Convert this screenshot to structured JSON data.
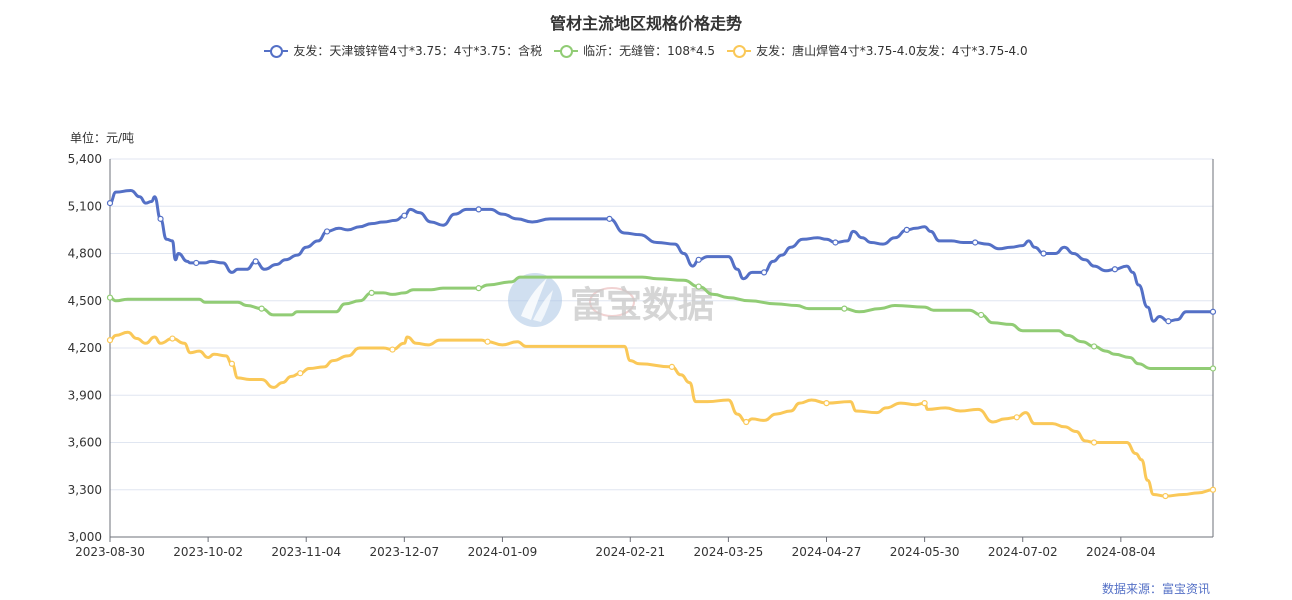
{
  "chart_data": {
    "type": "line",
    "title": "管材主流地区规格价格走势",
    "unit_label": "单位：元/吨",
    "source": "数据来源：富宝资讯",
    "watermark": "富宝数据",
    "ylim": [
      3000,
      5400
    ],
    "y_ticks": [
      "3,000",
      "3,300",
      "3,600",
      "3,900",
      "4,200",
      "4,500",
      "4,800",
      "5,100",
      "5,400"
    ],
    "y_tick_values": [
      3000,
      3300,
      3600,
      3900,
      4200,
      4500,
      4800,
      5100,
      5400
    ],
    "x_ticks": [
      "2023-08-30",
      "2023-10-02",
      "2023-11-04",
      "2023-12-07",
      "2024-01-09",
      "2024-02-21",
      "2024-03-25",
      "2024-04-27",
      "2024-05-30",
      "2024-07-02",
      "2024-08-04"
    ],
    "x_range": [
      "2023-08-30",
      "2024-09-04"
    ],
    "grid": true,
    "legend_position": "top-center",
    "series": [
      {
        "name": "友发：天津镀锌管4寸*3.75：4寸*3.75：含税",
        "color": "#5470c6",
        "points": [
          [
            "2023-08-30",
            5120
          ],
          [
            "2023-09-01",
            5190
          ],
          [
            "2023-09-06",
            5200
          ],
          [
            "2023-09-09",
            5160
          ],
          [
            "2023-09-11",
            5120
          ],
          [
            "2023-09-13",
            5130
          ],
          [
            "2023-09-14",
            5160
          ],
          [
            "2023-09-16",
            5020
          ],
          [
            "2023-09-18",
            4890
          ],
          [
            "2023-09-20",
            4880
          ],
          [
            "2023-09-21",
            4760
          ],
          [
            "2023-09-22",
            4800
          ],
          [
            "2023-09-25",
            4750
          ],
          [
            "2023-09-26",
            4740
          ],
          [
            "2023-09-28",
            4740
          ],
          [
            "2023-10-01",
            4740
          ],
          [
            "2023-10-03",
            4750
          ],
          [
            "2023-10-07",
            4740
          ],
          [
            "2023-10-10",
            4680
          ],
          [
            "2023-10-12",
            4700
          ],
          [
            "2023-10-15",
            4700
          ],
          [
            "2023-10-18",
            4750
          ],
          [
            "2023-10-21",
            4700
          ],
          [
            "2023-10-25",
            4730
          ],
          [
            "2023-10-28",
            4760
          ],
          [
            "2023-11-01",
            4790
          ],
          [
            "2023-11-04",
            4840
          ],
          [
            "2023-11-08",
            4880
          ],
          [
            "2023-11-11",
            4940
          ],
          [
            "2023-11-15",
            4960
          ],
          [
            "2023-11-18",
            4950
          ],
          [
            "2023-11-22",
            4970
          ],
          [
            "2023-11-26",
            4990
          ],
          [
            "2023-11-30",
            5000
          ],
          [
            "2023-12-04",
            5010
          ],
          [
            "2023-12-07",
            5040
          ],
          [
            "2023-12-09",
            5080
          ],
          [
            "2023-12-12",
            5060
          ],
          [
            "2023-12-16",
            5000
          ],
          [
            "2023-12-20",
            4980
          ],
          [
            "2023-12-24",
            5050
          ],
          [
            "2023-12-28",
            5080
          ],
          [
            "2024-01-01",
            5080
          ],
          [
            "2024-01-05",
            5080
          ],
          [
            "2024-01-09",
            5050
          ],
          [
            "2024-01-14",
            5020
          ],
          [
            "2024-01-19",
            5000
          ],
          [
            "2024-01-25",
            5020
          ],
          [
            "2024-02-04",
            5020
          ],
          [
            "2024-02-14",
            5020
          ],
          [
            "2024-02-19",
            4930
          ],
          [
            "2024-02-24",
            4920
          ],
          [
            "2024-03-01",
            4870
          ],
          [
            "2024-03-07",
            4860
          ],
          [
            "2024-03-10",
            4800
          ],
          [
            "2024-03-13",
            4720
          ],
          [
            "2024-03-15",
            4760
          ],
          [
            "2024-03-18",
            4780
          ],
          [
            "2024-03-22",
            4780
          ],
          [
            "2024-03-25",
            4780
          ],
          [
            "2024-03-28",
            4700
          ],
          [
            "2024-03-30",
            4640
          ],
          [
            "2024-04-02",
            4680
          ],
          [
            "2024-04-06",
            4680
          ],
          [
            "2024-04-09",
            4750
          ],
          [
            "2024-04-12",
            4790
          ],
          [
            "2024-04-15",
            4840
          ],
          [
            "2024-04-19",
            4890
          ],
          [
            "2024-04-24",
            4900
          ],
          [
            "2024-04-27",
            4890
          ],
          [
            "2024-04-30",
            4870
          ],
          [
            "2024-05-04",
            4880
          ],
          [
            "2024-05-06",
            4940
          ],
          [
            "2024-05-09",
            4900
          ],
          [
            "2024-05-12",
            4870
          ],
          [
            "2024-05-16",
            4860
          ],
          [
            "2024-05-20",
            4900
          ],
          [
            "2024-05-24",
            4950
          ],
          [
            "2024-05-27",
            4960
          ],
          [
            "2024-05-30",
            4970
          ],
          [
            "2024-06-01",
            4940
          ],
          [
            "2024-06-04",
            4880
          ],
          [
            "2024-06-08",
            4880
          ],
          [
            "2024-06-12",
            4870
          ],
          [
            "2024-06-16",
            4870
          ],
          [
            "2024-06-20",
            4860
          ],
          [
            "2024-06-24",
            4830
          ],
          [
            "2024-06-28",
            4840
          ],
          [
            "2024-07-02",
            4850
          ],
          [
            "2024-07-04",
            4880
          ],
          [
            "2024-07-06",
            4840
          ],
          [
            "2024-07-09",
            4800
          ],
          [
            "2024-07-13",
            4800
          ],
          [
            "2024-07-16",
            4840
          ],
          [
            "2024-07-19",
            4800
          ],
          [
            "2024-07-23",
            4760
          ],
          [
            "2024-07-26",
            4720
          ],
          [
            "2024-07-30",
            4690
          ],
          [
            "2024-08-02",
            4700
          ],
          [
            "2024-08-06",
            4720
          ],
          [
            "2024-08-08",
            4680
          ],
          [
            "2024-08-10",
            4600
          ],
          [
            "2024-08-13",
            4460
          ],
          [
            "2024-08-15",
            4370
          ],
          [
            "2024-08-17",
            4400
          ],
          [
            "2024-08-20",
            4370
          ],
          [
            "2024-08-23",
            4380
          ],
          [
            "2024-08-26",
            4430
          ],
          [
            "2024-09-04",
            4430
          ]
        ]
      },
      {
        "name": "临沂：无缝管：108*4.5",
        "color": "#91cc75",
        "points": [
          [
            "2023-08-30",
            4520
          ],
          [
            "2023-09-01",
            4500
          ],
          [
            "2023-09-05",
            4510
          ],
          [
            "2023-09-29",
            4510
          ],
          [
            "2023-10-01",
            4490
          ],
          [
            "2023-10-12",
            4490
          ],
          [
            "2023-10-15",
            4470
          ],
          [
            "2023-10-20",
            4450
          ],
          [
            "2023-10-24",
            4410
          ],
          [
            "2023-10-30",
            4410
          ],
          [
            "2023-11-01",
            4430
          ],
          [
            "2023-11-14",
            4430
          ],
          [
            "2023-11-17",
            4480
          ],
          [
            "2023-11-22",
            4500
          ],
          [
            "2023-11-26",
            4550
          ],
          [
            "2023-11-30",
            4550
          ],
          [
            "2023-12-03",
            4540
          ],
          [
            "2023-12-07",
            4550
          ],
          [
            "2023-12-10",
            4570
          ],
          [
            "2023-12-16",
            4570
          ],
          [
            "2023-12-20",
            4580
          ],
          [
            "2024-01-01",
            4580
          ],
          [
            "2024-01-04",
            4600
          ],
          [
            "2024-01-12",
            4620
          ],
          [
            "2024-01-15",
            4650
          ],
          [
            "2024-02-25",
            4650
          ],
          [
            "2024-03-01",
            4640
          ],
          [
            "2024-03-10",
            4630
          ],
          [
            "2024-03-15",
            4590
          ],
          [
            "2024-03-20",
            4540
          ],
          [
            "2024-03-25",
            4520
          ],
          [
            "2024-04-01",
            4500
          ],
          [
            "2024-04-10",
            4480
          ],
          [
            "2024-04-17",
            4470
          ],
          [
            "2024-04-21",
            4450
          ],
          [
            "2024-05-03",
            4450
          ],
          [
            "2024-05-08",
            4430
          ],
          [
            "2024-05-15",
            4450
          ],
          [
            "2024-05-20",
            4470
          ],
          [
            "2024-05-30",
            4460
          ],
          [
            "2024-06-02",
            4440
          ],
          [
            "2024-06-14",
            4440
          ],
          [
            "2024-06-18",
            4410
          ],
          [
            "2024-06-22",
            4360
          ],
          [
            "2024-06-28",
            4350
          ],
          [
            "2024-07-02",
            4310
          ],
          [
            "2024-07-14",
            4310
          ],
          [
            "2024-07-17",
            4280
          ],
          [
            "2024-07-22",
            4240
          ],
          [
            "2024-07-26",
            4210
          ],
          [
            "2024-07-30",
            4180
          ],
          [
            "2024-08-02",
            4160
          ],
          [
            "2024-08-07",
            4140
          ],
          [
            "2024-08-10",
            4100
          ],
          [
            "2024-08-14",
            4070
          ],
          [
            "2024-09-04",
            4070
          ]
        ]
      },
      {
        "name": "友发：唐山焊管4寸*3.75-4.0友发：4寸*3.75-4.0",
        "color": "#fac858",
        "points": [
          [
            "2023-08-30",
            4250
          ],
          [
            "2023-09-01",
            4280
          ],
          [
            "2023-09-05",
            4300
          ],
          [
            "2023-09-08",
            4260
          ],
          [
            "2023-09-11",
            4230
          ],
          [
            "2023-09-14",
            4270
          ],
          [
            "2023-09-16",
            4230
          ],
          [
            "2023-09-20",
            4260
          ],
          [
            "2023-09-24",
            4230
          ],
          [
            "2023-09-26",
            4170
          ],
          [
            "2023-09-29",
            4180
          ],
          [
            "2023-10-02",
            4140
          ],
          [
            "2023-10-04",
            4160
          ],
          [
            "2023-10-08",
            4150
          ],
          [
            "2023-10-10",
            4100
          ],
          [
            "2023-10-12",
            4010
          ],
          [
            "2023-10-16",
            4000
          ],
          [
            "2023-10-20",
            4000
          ],
          [
            "2023-10-24",
            3950
          ],
          [
            "2023-10-27",
            3980
          ],
          [
            "2023-10-30",
            4020
          ],
          [
            "2023-11-02",
            4040
          ],
          [
            "2023-11-05",
            4070
          ],
          [
            "2023-11-10",
            4080
          ],
          [
            "2023-11-13",
            4120
          ],
          [
            "2023-11-18",
            4150
          ],
          [
            "2023-11-22",
            4200
          ],
          [
            "2023-11-30",
            4200
          ],
          [
            "2023-12-03",
            4190
          ],
          [
            "2023-12-07",
            4230
          ],
          [
            "2023-12-08",
            4270
          ],
          [
            "2023-12-11",
            4230
          ],
          [
            "2023-12-15",
            4220
          ],
          [
            "2023-12-19",
            4250
          ],
          [
            "2024-01-02",
            4250
          ],
          [
            "2024-01-04",
            4240
          ],
          [
            "2024-01-09",
            4220
          ],
          [
            "2024-01-14",
            4240
          ],
          [
            "2024-01-17",
            4210
          ],
          [
            "2024-02-19",
            4210
          ],
          [
            "2024-02-21",
            4120
          ],
          [
            "2024-02-24",
            4100
          ],
          [
            "2024-03-06",
            4080
          ],
          [
            "2024-03-09",
            4030
          ],
          [
            "2024-03-12",
            3980
          ],
          [
            "2024-03-14",
            3860
          ],
          [
            "2024-03-18",
            3860
          ],
          [
            "2024-03-25",
            3870
          ],
          [
            "2024-03-28",
            3780
          ],
          [
            "2024-03-31",
            3730
          ],
          [
            "2024-04-02",
            3750
          ],
          [
            "2024-04-06",
            3740
          ],
          [
            "2024-04-10",
            3780
          ],
          [
            "2024-04-15",
            3800
          ],
          [
            "2024-04-18",
            3850
          ],
          [
            "2024-04-22",
            3870
          ],
          [
            "2024-04-27",
            3850
          ],
          [
            "2024-05-05",
            3860
          ],
          [
            "2024-05-07",
            3800
          ],
          [
            "2024-05-14",
            3790
          ],
          [
            "2024-05-17",
            3820
          ],
          [
            "2024-05-22",
            3850
          ],
          [
            "2024-05-27",
            3840
          ],
          [
            "2024-05-30",
            3850
          ],
          [
            "2024-05-31",
            3810
          ],
          [
            "2024-06-06",
            3820
          ],
          [
            "2024-06-11",
            3800
          ],
          [
            "2024-06-17",
            3810
          ],
          [
            "2024-06-22",
            3730
          ],
          [
            "2024-06-26",
            3750
          ],
          [
            "2024-06-30",
            3760
          ],
          [
            "2024-07-03",
            3790
          ],
          [
            "2024-07-06",
            3720
          ],
          [
            "2024-07-12",
            3720
          ],
          [
            "2024-07-16",
            3700
          ],
          [
            "2024-07-20",
            3670
          ],
          [
            "2024-07-23",
            3610
          ],
          [
            "2024-07-26",
            3600
          ],
          [
            "2024-08-02",
            3600
          ],
          [
            "2024-08-06",
            3600
          ],
          [
            "2024-08-09",
            3530
          ],
          [
            "2024-08-11",
            3490
          ],
          [
            "2024-08-13",
            3360
          ],
          [
            "2024-08-15",
            3270
          ],
          [
            "2024-08-19",
            3260
          ],
          [
            "2024-08-25",
            3270
          ],
          [
            "2024-08-30",
            3280
          ],
          [
            "2024-09-04",
            3300
          ]
        ]
      }
    ]
  }
}
